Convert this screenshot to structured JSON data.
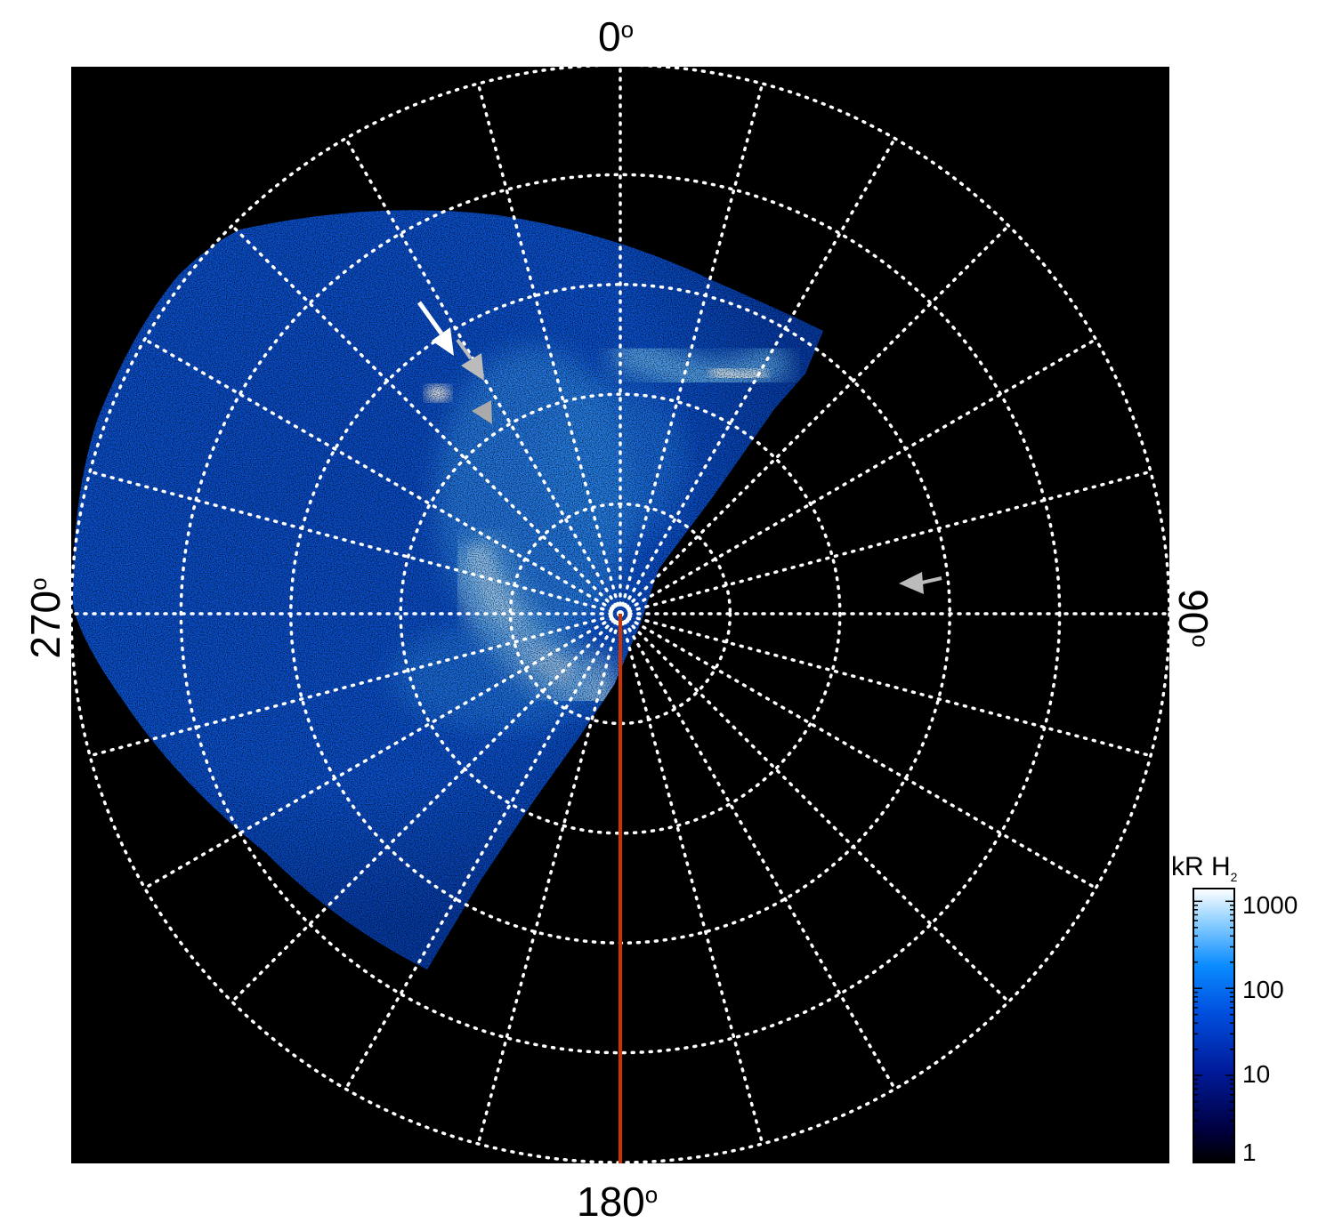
{
  "axes": {
    "top_label": "0",
    "bottom_label": "180",
    "left_label": "270",
    "right_label": "90",
    "degree_symbol": "o"
  },
  "colorbar": {
    "title_main": "kR H",
    "title_sub": "2",
    "ticks": [
      "1000",
      "100",
      "10",
      "1"
    ],
    "scale": "log",
    "range": [
      1,
      1400
    ]
  },
  "colors": {
    "background": "#000000",
    "grid": "#ffffff",
    "meridian_line": "#cc3300",
    "colormap": [
      "#000000",
      "#000066",
      "#0033cc",
      "#0088ff",
      "#88ccff",
      "#ffffff"
    ],
    "arrow_white": "#ffffff",
    "arrow_gray": "#bbbbbb"
  },
  "grid": {
    "ring_count": 5,
    "meridian_count": 24,
    "style": "dotted"
  }
}
